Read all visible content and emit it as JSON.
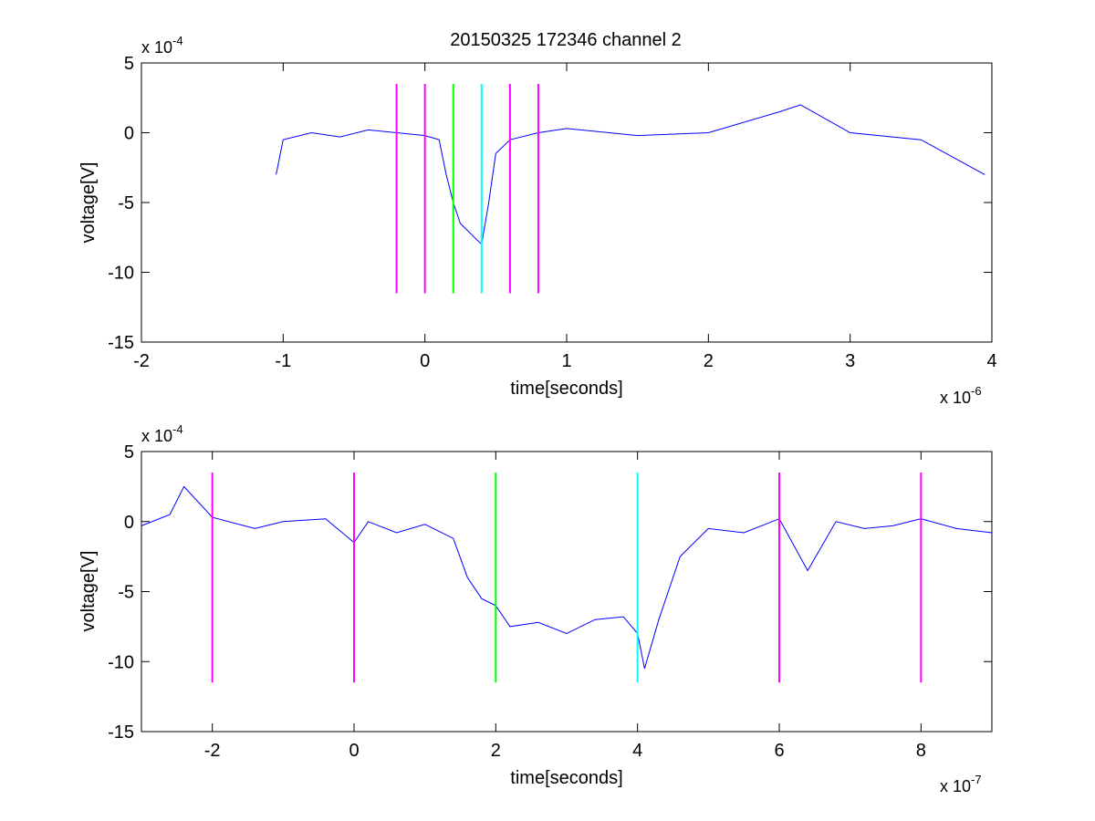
{
  "figure": {
    "title": "20150325 172346 channel 2"
  },
  "chart_data": [
    {
      "type": "line",
      "title": "20150325 172346 channel 2",
      "xlabel": "time[seconds]",
      "ylabel": "voltage[V]",
      "x_multiplier": "x 10",
      "x_exponent": "-6",
      "y_multiplier": "x 10",
      "y_exponent": "-4",
      "xlim": [
        -2,
        4
      ],
      "ylim": [
        -15,
        5
      ],
      "x_ticks": [
        -2,
        -1,
        0,
        1,
        2,
        3,
        4
      ],
      "x_tick_labels": [
        "-2",
        "-1",
        "0",
        "1",
        "2",
        "3",
        "4"
      ],
      "y_ticks": [
        -15,
        -10,
        -5,
        0,
        5
      ],
      "y_tick_labels": [
        "-15",
        "-10",
        "-5",
        "0",
        "5"
      ],
      "grid": false,
      "series": [
        {
          "color": "#0000ff",
          "x": [
            -1.05,
            -1.0,
            -0.8,
            -0.6,
            -0.4,
            -0.2,
            0.0,
            0.1,
            0.15,
            0.2,
            0.25,
            0.3,
            0.35,
            0.4,
            0.45,
            0.5,
            0.6,
            0.8,
            1.0,
            1.5,
            2.0,
            2.5,
            2.65,
            3.0,
            3.5,
            3.95
          ],
          "y": [
            -3,
            -0.5,
            0,
            -0.3,
            0.2,
            0,
            -0.2,
            -0.5,
            -3,
            -5,
            -6.5,
            -7,
            -7.5,
            -8,
            -5,
            -1.5,
            -0.5,
            0,
            0.3,
            -0.2,
            0,
            1.5,
            2,
            0,
            -0.5,
            -3
          ]
        }
      ],
      "markers": [
        {
          "x": -0.2,
          "y_from": -11.5,
          "y_to": 3.5,
          "color": "#ff00ff"
        },
        {
          "x": 0.0,
          "y_from": -11.5,
          "y_to": 3.5,
          "color": "#ff00ff"
        },
        {
          "x": 0.2,
          "y_from": -11.5,
          "y_to": 3.5,
          "color": "#00ff00"
        },
        {
          "x": 0.4,
          "y_from": -11.5,
          "y_to": 3.5,
          "color": "#00ffff"
        },
        {
          "x": 0.6,
          "y_from": -11.5,
          "y_to": 3.5,
          "color": "#ff00ff"
        },
        {
          "x": 0.8,
          "y_from": -11.5,
          "y_to": 3.5,
          "color": "#ff00ff"
        }
      ]
    },
    {
      "type": "line",
      "title": "",
      "xlabel": "time[seconds]",
      "ylabel": "voltage[V]",
      "x_multiplier": "x 10",
      "x_exponent": "-7",
      "y_multiplier": "x 10",
      "y_exponent": "-4",
      "xlim": [
        -3,
        9
      ],
      "ylim": [
        -15,
        5
      ],
      "x_ticks": [
        -2,
        0,
        2,
        4,
        6,
        8
      ],
      "x_tick_labels": [
        "-2",
        "0",
        "2",
        "4",
        "6",
        "8"
      ],
      "y_ticks": [
        -15,
        -10,
        -5,
        0,
        5
      ],
      "y_tick_labels": [
        "-15",
        "-10",
        "-5",
        "0",
        "5"
      ],
      "grid": false,
      "series": [
        {
          "color": "#0000ff",
          "x": [
            -3.0,
            -2.6,
            -2.4,
            -2.0,
            -1.4,
            -1.0,
            -0.4,
            0.0,
            0.2,
            0.6,
            1.0,
            1.4,
            1.6,
            1.8,
            2.0,
            2.2,
            2.6,
            3.0,
            3.4,
            3.8,
            4.0,
            4.1,
            4.3,
            4.6,
            5.0,
            5.5,
            6.0,
            6.4,
            6.8,
            7.2,
            7.6,
            8.0,
            8.5,
            9.0
          ],
          "y": [
            -0.3,
            0.5,
            2.5,
            0.3,
            -0.5,
            0,
            0.2,
            -1.5,
            0,
            -0.8,
            -0.2,
            -1.2,
            -4,
            -5.5,
            -6,
            -7.5,
            -7.2,
            -8,
            -7,
            -6.8,
            -8,
            -10.5,
            -7,
            -2.5,
            -0.5,
            -0.8,
            0.2,
            -3.5,
            0,
            -0.5,
            -0.3,
            0.2,
            -0.5,
            -0.8
          ]
        }
      ],
      "markers": [
        {
          "x": -2.0,
          "y_from": -11.5,
          "y_to": 3.5,
          "color": "#ff00ff"
        },
        {
          "x": 0.0,
          "y_from": -11.5,
          "y_to": 3.5,
          "color": "#ff00ff"
        },
        {
          "x": 2.0,
          "y_from": -11.5,
          "y_to": 3.5,
          "color": "#00ff00"
        },
        {
          "x": 4.0,
          "y_from": -11.5,
          "y_to": 3.5,
          "color": "#00ffff"
        },
        {
          "x": 6.0,
          "y_from": -11.5,
          "y_to": 3.5,
          "color": "#ff00ff"
        },
        {
          "x": 8.0,
          "y_from": -11.5,
          "y_to": 3.5,
          "color": "#ff00ff"
        }
      ]
    }
  ]
}
